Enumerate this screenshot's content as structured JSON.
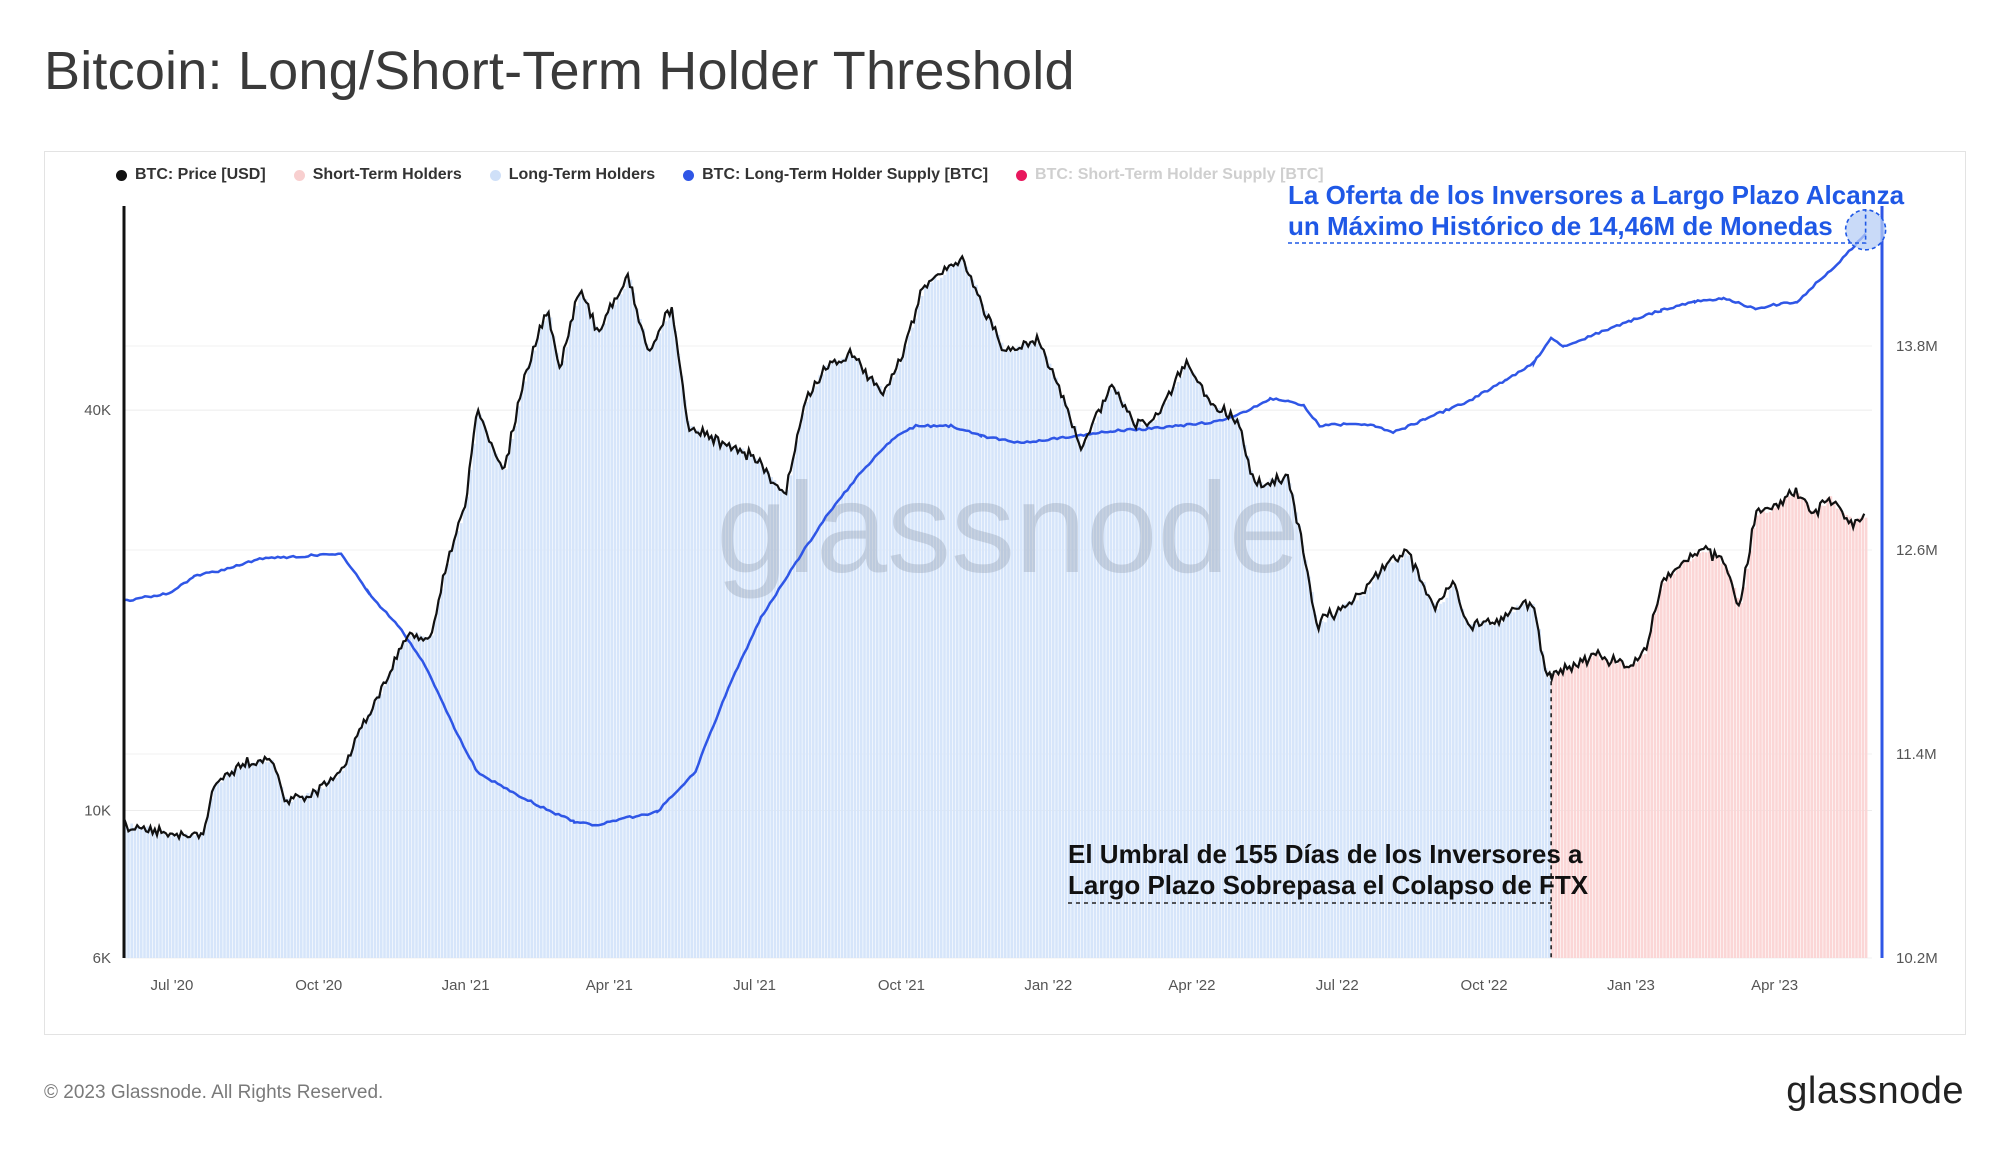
{
  "title": "Bitcoin: Long/Short-Term Holder Threshold",
  "footer": {
    "copyright": "© 2023 Glassnode. All Rights Reserved.",
    "logo": "glassnode"
  },
  "watermark": "glassnode",
  "legend": [
    {
      "label": "BTC: Price [USD]",
      "color": "#111111",
      "muted": false
    },
    {
      "label": "Short-Term Holders",
      "color": "#f8cfcf",
      "muted": false
    },
    {
      "label": "Long-Term Holders",
      "color": "#cfe0f8",
      "muted": false
    },
    {
      "label": "BTC: Long-Term Holder Supply [BTC]",
      "color": "#2f56e6",
      "muted": false
    },
    {
      "label": "BTC: Short-Term Holder Supply [BTC]",
      "color": "#e8175d",
      "muted": true
    }
  ],
  "annotations": {
    "lth_supply_lines": [
      "La Oferta de los Inversores a Largo Plazo Alcanza",
      "un Máximo Histórico de 14,46M de Monedas"
    ],
    "threshold_lines": [
      "El Umbral de 155 Días de los Inversores a",
      "Largo Plazo Sobrepasa el Colapso de FTX"
    ]
  },
  "colors": {
    "price": "#111111",
    "lth_supply": "#2f56e6",
    "lth_fill": "#d6e5fa",
    "sth_fill": "#fbd6d6",
    "annot_blue": "#1f58e6"
  },
  "chart_data": {
    "type": "line",
    "x_range": [
      "2020-06-01",
      "2023-06-01"
    ],
    "x_ticks": [
      "Jul '20",
      "Oct '20",
      "Jan '21",
      "Apr '21",
      "Jul '21",
      "Oct '21",
      "Jan '22",
      "Apr '22",
      "Jul '22",
      "Oct '22",
      "Jan '23",
      "Apr '23"
    ],
    "y_left": {
      "scale": "log",
      "ticks": [
        "6K",
        "10K",
        "40K"
      ],
      "range": [
        6000,
        80000
      ]
    },
    "y_right": {
      "scale": "linear",
      "ticks": [
        "10.2M",
        "11.4M",
        "12.6M",
        "13.8M"
      ],
      "range": [
        10200000,
        14600000
      ]
    },
    "threshold_date": "2022-11-12",
    "series": [
      {
        "name": "BTC: Price [USD]",
        "axis": "left",
        "points": [
          [
            "2020-06-01",
            9500
          ],
          [
            "2020-06-15",
            9400
          ],
          [
            "2020-07-01",
            9200
          ],
          [
            "2020-07-20",
            9200
          ],
          [
            "2020-07-28",
            11000
          ],
          [
            "2020-08-15",
            11800
          ],
          [
            "2020-09-01",
            11900
          ],
          [
            "2020-09-10",
            10300
          ],
          [
            "2020-09-30",
            10700
          ],
          [
            "2020-10-15",
            11400
          ],
          [
            "2020-10-25",
            13000
          ],
          [
            "2020-11-10",
            15300
          ],
          [
            "2020-11-25",
            18500
          ],
          [
            "2020-12-10",
            18300
          ],
          [
            "2020-12-20",
            23500
          ],
          [
            "2021-01-01",
            29000
          ],
          [
            "2021-01-08",
            40500
          ],
          [
            "2021-01-15",
            36000
          ],
          [
            "2021-01-25",
            32500
          ],
          [
            "2021-02-08",
            46000
          ],
          [
            "2021-02-21",
            57000
          ],
          [
            "2021-03-01",
            46000
          ],
          [
            "2021-03-13",
            61000
          ],
          [
            "2021-03-25",
            52500
          ],
          [
            "2021-04-13",
            63500
          ],
          [
            "2021-04-25",
            49000
          ],
          [
            "2021-05-10",
            57000
          ],
          [
            "2021-05-20",
            38000
          ],
          [
            "2021-06-01",
            36500
          ],
          [
            "2021-06-20",
            35000
          ],
          [
            "2021-07-01",
            34000
          ],
          [
            "2021-07-20",
            29800
          ],
          [
            "2021-08-01",
            41000
          ],
          [
            "2021-08-15",
            47000
          ],
          [
            "2021-09-01",
            48500
          ],
          [
            "2021-09-07",
            46000
          ],
          [
            "2021-09-20",
            42500
          ],
          [
            "2021-10-01",
            48000
          ],
          [
            "2021-10-15",
            61500
          ],
          [
            "2021-11-09",
            67500
          ],
          [
            "2021-11-20",
            58000
          ],
          [
            "2021-12-05",
            49000
          ],
          [
            "2021-12-25",
            50800
          ],
          [
            "2022-01-05",
            45000
          ],
          [
            "2022-01-22",
            35000
          ],
          [
            "2022-02-10",
            44000
          ],
          [
            "2022-02-24",
            38000
          ],
          [
            "2022-03-10",
            39000
          ],
          [
            "2022-03-28",
            47000
          ],
          [
            "2022-04-15",
            40500
          ],
          [
            "2022-04-30",
            38500
          ],
          [
            "2022-05-10",
            31000
          ],
          [
            "2022-05-31",
            31800
          ],
          [
            "2022-06-13",
            22500
          ],
          [
            "2022-06-18",
            19000
          ],
          [
            "2022-07-01",
            20000
          ],
          [
            "2022-07-15",
            21000
          ],
          [
            "2022-08-01",
            23500
          ],
          [
            "2022-08-14",
            24300
          ],
          [
            "2022-09-01",
            20000
          ],
          [
            "2022-09-12",
            22000
          ],
          [
            "2022-09-20",
            19000
          ],
          [
            "2022-10-10",
            19200
          ],
          [
            "2022-10-25",
            20500
          ],
          [
            "2022-11-01",
            20300
          ],
          [
            "2022-11-09",
            16000
          ],
          [
            "2022-11-20",
            16300
          ],
          [
            "2022-12-10",
            17100
          ],
          [
            "2022-12-31",
            16500
          ],
          [
            "2023-01-10",
            17400
          ],
          [
            "2023-01-20",
            22000
          ],
          [
            "2023-02-01",
            23500
          ],
          [
            "2023-02-16",
            24700
          ],
          [
            "2023-03-01",
            23500
          ],
          [
            "2023-03-10",
            20200
          ],
          [
            "2023-03-20",
            28000
          ],
          [
            "2023-04-01",
            28500
          ],
          [
            "2023-04-14",
            30300
          ],
          [
            "2023-04-25",
            28000
          ],
          [
            "2023-05-05",
            29500
          ],
          [
            "2023-05-20",
            27000
          ],
          [
            "2023-05-28",
            27700
          ]
        ]
      },
      {
        "name": "BTC: Long-Term Holder Supply [BTC]",
        "axis": "right",
        "points": [
          [
            "2020-06-01",
            12300000
          ],
          [
            "2020-07-01",
            12350000
          ],
          [
            "2020-07-15",
            12450000
          ],
          [
            "2020-08-01",
            12480000
          ],
          [
            "2020-08-25",
            12550000
          ],
          [
            "2020-09-15",
            12560000
          ],
          [
            "2020-10-15",
            12580000
          ],
          [
            "2020-11-01",
            12350000
          ],
          [
            "2020-11-20",
            12150000
          ],
          [
            "2020-12-05",
            11950000
          ],
          [
            "2020-12-25",
            11550000
          ],
          [
            "2021-01-08",
            11300000
          ],
          [
            "2021-01-25",
            11200000
          ],
          [
            "2021-02-15",
            11100000
          ],
          [
            "2021-03-10",
            11000000
          ],
          [
            "2021-03-25",
            10980000
          ],
          [
            "2021-04-10",
            11020000
          ],
          [
            "2021-05-01",
            11060000
          ],
          [
            "2021-05-25",
            11300000
          ],
          [
            "2021-06-15",
            11800000
          ],
          [
            "2021-07-05",
            12200000
          ],
          [
            "2021-07-25",
            12500000
          ],
          [
            "2021-08-15",
            12800000
          ],
          [
            "2021-09-05",
            13050000
          ],
          [
            "2021-09-25",
            13250000
          ],
          [
            "2021-10-10",
            13330000
          ],
          [
            "2021-11-01",
            13330000
          ],
          [
            "2021-11-20",
            13270000
          ],
          [
            "2021-12-15",
            13230000
          ],
          [
            "2022-01-10",
            13260000
          ],
          [
            "2022-02-10",
            13300000
          ],
          [
            "2022-03-01",
            13310000
          ],
          [
            "2022-03-25",
            13330000
          ],
          [
            "2022-04-20",
            13360000
          ],
          [
            "2022-05-08",
            13430000
          ],
          [
            "2022-05-20",
            13490000
          ],
          [
            "2022-06-01",
            13480000
          ],
          [
            "2022-06-10",
            13450000
          ],
          [
            "2022-06-20",
            13330000
          ],
          [
            "2022-07-05",
            13340000
          ],
          [
            "2022-07-25",
            13330000
          ],
          [
            "2022-08-05",
            13290000
          ],
          [
            "2022-08-25",
            13370000
          ],
          [
            "2022-09-20",
            13470000
          ],
          [
            "2022-10-15",
            13600000
          ],
          [
            "2022-11-01",
            13700000
          ],
          [
            "2022-11-12",
            13850000
          ],
          [
            "2022-11-20",
            13800000
          ],
          [
            "2022-12-10",
            13870000
          ],
          [
            "2023-01-01",
            13950000
          ],
          [
            "2023-01-20",
            14010000
          ],
          [
            "2023-02-10",
            14060000
          ],
          [
            "2023-02-28",
            14080000
          ],
          [
            "2023-03-20",
            14020000
          ],
          [
            "2023-04-05",
            14050000
          ],
          [
            "2023-04-15",
            14060000
          ],
          [
            "2023-04-25",
            14150000
          ],
          [
            "2023-05-10",
            14280000
          ],
          [
            "2023-05-28",
            14460000
          ]
        ]
      }
    ]
  }
}
